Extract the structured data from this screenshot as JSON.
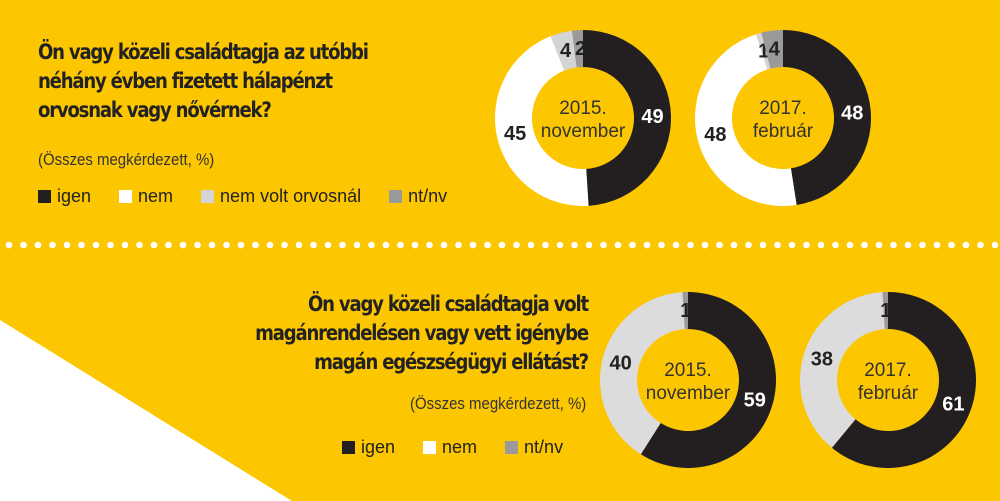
{
  "colors": {
    "background": "#fcc600",
    "igen": "#231f20",
    "nem": "#ffffff",
    "nem_bottom": "#dcdcdc",
    "nem_volt_orvosnal": "#d4d4d4",
    "nt_nv": "#9a9a9a"
  },
  "chart_data": [
    {
      "type": "pie",
      "title": "Ön vagy közeli családtagja az utóbbi néhány évben fizetett hálapénzt orvosnak vagy nővérnek?",
      "title_lines": [
        "Ön vagy közeli családtagja az utóbbi",
        "néhány évben fizetett hálapénzt",
        "orvosnak vagy nővérnek?"
      ],
      "subtitle": "(Összes megkérdezett, %)",
      "legend": [
        "igen",
        "nem",
        "nem volt orvosnál",
        "nt/nv"
      ],
      "donuts": [
        {
          "label_year": "2015.",
          "label_month": "november",
          "values": [
            49,
            45,
            4,
            2
          ]
        },
        {
          "label_year": "2017.",
          "label_month": "február",
          "values": [
            48,
            48,
            1,
            4
          ]
        }
      ]
    },
    {
      "type": "pie",
      "title": "Ön vagy közeli családtagja volt magánrendelésen vagy vett igénybe magán egészségügyi ellátást?",
      "title_lines": [
        "Ön vagy közeli családtagja volt",
        "magánrendelésen vagy vett igénybe",
        "magán egészségügyi ellátást?"
      ],
      "subtitle": "(Összes megkérdezett, %)",
      "legend": [
        "igen",
        "nem",
        "nt/nv"
      ],
      "donuts": [
        {
          "label_year": "2015.",
          "label_month": "november",
          "values": [
            59,
            40,
            1
          ]
        },
        {
          "label_year": "2017.",
          "label_month": "február",
          "values": [
            61,
            38,
            1
          ]
        }
      ]
    }
  ]
}
